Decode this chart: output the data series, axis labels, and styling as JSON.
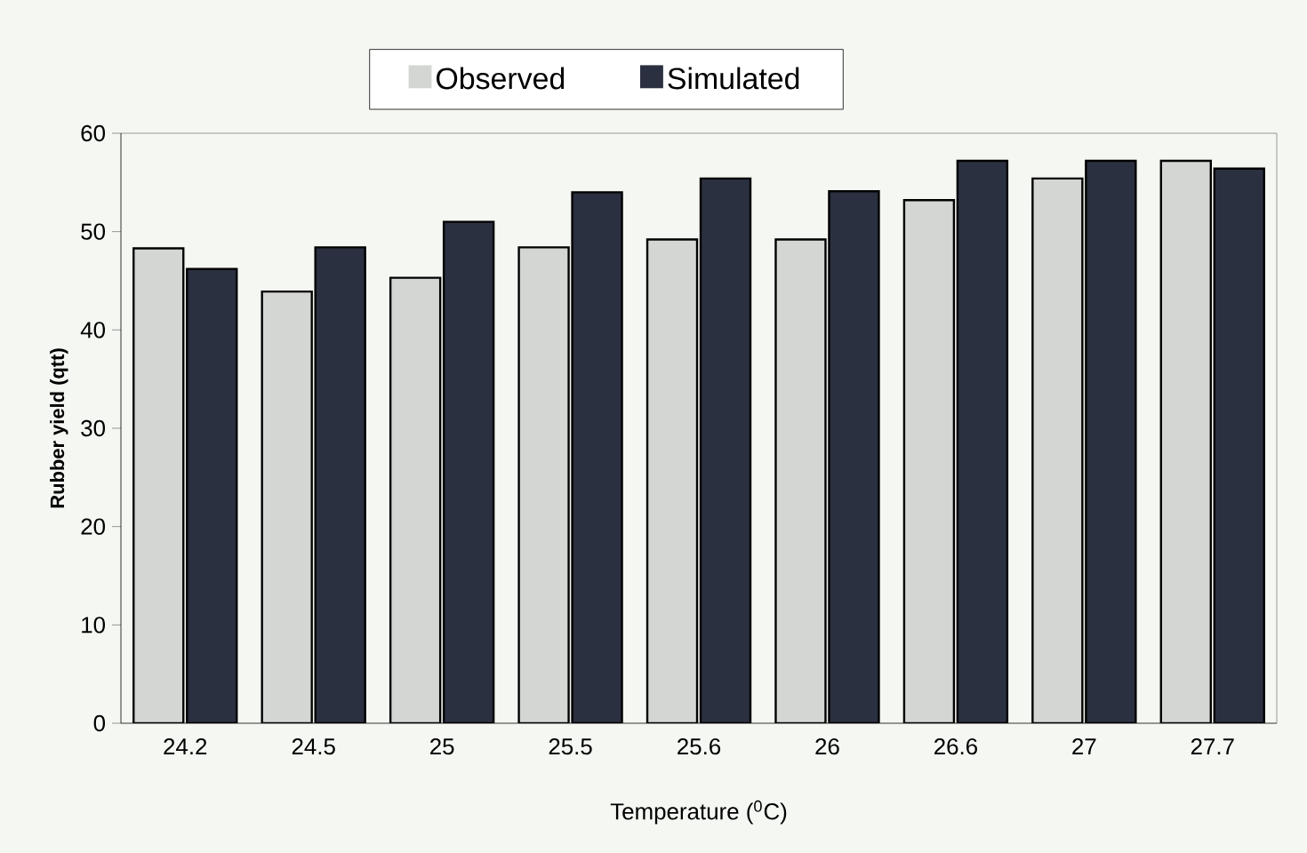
{
  "chart_data": {
    "type": "bar",
    "xlabel": "Temperature ($^{0}$C)",
    "ylabel": "Rubber yield (qtt)",
    "categories": [
      "24.2",
      "24.5",
      "25",
      "25.5",
      "25.6",
      "26",
      "26.6",
      "27",
      "27.7"
    ],
    "series": [
      {
        "name": "Observed",
        "color": "#d4d6d4",
        "values": [
          48.3,
          43.9,
          45.3,
          48.4,
          49.2,
          49.2,
          53.2,
          55.4,
          57.2
        ]
      },
      {
        "name": "Simulated",
        "color": "#2b3040",
        "values": [
          46.2,
          48.4,
          51.0,
          54.0,
          55.4,
          54.1,
          57.2,
          57.2,
          56.4
        ]
      }
    ],
    "ylim": [
      0,
      60
    ],
    "yticks": [
      0,
      10,
      20,
      30,
      40,
      50,
      60
    ],
    "grid": false,
    "legend": "top"
  }
}
